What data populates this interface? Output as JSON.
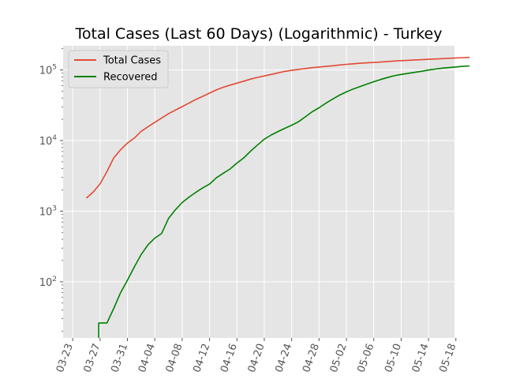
{
  "chart_data": {
    "type": "line",
    "title": "Total Cases (Last 60 Days) (Logarithmic) - Turkey",
    "xlabel": "",
    "ylabel": "",
    "yscale": "log",
    "grid": true,
    "legend_position": "top-left",
    "x_ticks": [
      "03-23",
      "03-27",
      "03-31",
      "04-04",
      "04-08",
      "04-12",
      "04-16",
      "04-20",
      "04-24",
      "04-28",
      "05-02",
      "05-06",
      "05-10",
      "05-14",
      "05-18"
    ],
    "y_ticks": [
      {
        "value": 100,
        "base": "10",
        "exp": "2"
      },
      {
        "value": 1000,
        "base": "10",
        "exp": "3"
      },
      {
        "value": 10000,
        "base": "10",
        "exp": "4"
      },
      {
        "value": 100000,
        "base": "10",
        "exp": "5"
      }
    ],
    "x_range_days": [
      -1.4,
      55.8
    ],
    "y_range": [
      16,
      220000
    ],
    "series": [
      {
        "name": "Total Cases",
        "color": "#E24A33",
        "points": [
          [
            2,
            1529
          ],
          [
            3,
            1872
          ],
          [
            4,
            2433
          ],
          [
            5,
            3629
          ],
          [
            6,
            5698
          ],
          [
            7,
            7402
          ],
          [
            8,
            9217
          ],
          [
            9,
            10827
          ],
          [
            10,
            13531
          ],
          [
            11,
            15679
          ],
          [
            12,
            18135
          ],
          [
            13,
            20921
          ],
          [
            14,
            23934
          ],
          [
            15,
            27069
          ],
          [
            16,
            30217
          ],
          [
            17,
            34109
          ],
          [
            18,
            38226
          ],
          [
            19,
            42282
          ],
          [
            20,
            47029
          ],
          [
            21,
            52167
          ],
          [
            22,
            56956
          ],
          [
            23,
            61049
          ],
          [
            24,
            65111
          ],
          [
            25,
            69392
          ],
          [
            26,
            74193
          ],
          [
            27,
            78546
          ],
          [
            28,
            82329
          ],
          [
            29,
            86306
          ],
          [
            30,
            90980
          ],
          [
            31,
            95591
          ],
          [
            32,
            98674
          ],
          [
            33,
            101790
          ],
          [
            34,
            104912
          ],
          [
            35,
            107773
          ],
          [
            36,
            110130
          ],
          [
            37,
            112261
          ],
          [
            38,
            114653
          ],
          [
            39,
            117589
          ],
          [
            40,
            120204
          ],
          [
            41,
            122392
          ],
          [
            42,
            124375
          ],
          [
            43,
            126045
          ],
          [
            44,
            127659
          ],
          [
            45,
            129491
          ],
          [
            46,
            131744
          ],
          [
            47,
            133721
          ],
          [
            48,
            135569
          ],
          [
            49,
            137115
          ],
          [
            50,
            138657
          ],
          [
            51,
            139771
          ],
          [
            52,
            141475
          ],
          [
            53,
            143114
          ],
          [
            54,
            144749
          ],
          [
            55,
            146457
          ],
          [
            56,
            148067
          ],
          [
            57,
            149435
          ],
          [
            58,
            150593
          ]
        ]
      },
      {
        "name": "Recovered",
        "color": "#008000",
        "points": [
          [
            3.8,
            16
          ],
          [
            3.8,
            26
          ],
          [
            4.8,
            26
          ],
          [
            5,
            26
          ],
          [
            6,
            42
          ],
          [
            7,
            70
          ],
          [
            8,
            105
          ],
          [
            9,
            162
          ],
          [
            10,
            243
          ],
          [
            11,
            333
          ],
          [
            12,
            415
          ],
          [
            13,
            484
          ],
          [
            14,
            786
          ],
          [
            15,
            1042
          ],
          [
            16,
            1326
          ],
          [
            17,
            1582
          ],
          [
            18,
            1846
          ],
          [
            19,
            2142
          ],
          [
            20,
            2423
          ],
          [
            21,
            2965
          ],
          [
            22,
            3446
          ],
          [
            23,
            3957
          ],
          [
            24,
            4799
          ],
          [
            25,
            5674
          ],
          [
            26,
            7089
          ],
          [
            27,
            8631
          ],
          [
            28,
            10453
          ],
          [
            29,
            11976
          ],
          [
            30,
            13430
          ],
          [
            31,
            14918
          ],
          [
            32,
            16477
          ],
          [
            33,
            18491
          ],
          [
            34,
            21737
          ],
          [
            35,
            25582
          ],
          [
            36,
            29140
          ],
          [
            37,
            33791
          ],
          [
            38,
            38809
          ],
          [
            39,
            44040
          ],
          [
            40,
            48886
          ],
          [
            41,
            53808
          ],
          [
            42,
            58259
          ],
          [
            43,
            63151
          ],
          [
            44,
            68166
          ],
          [
            45,
            73285
          ],
          [
            46,
            78202
          ],
          [
            47,
            82984
          ],
          [
            48,
            86396
          ],
          [
            49,
            89480
          ],
          [
            50,
            92691
          ],
          [
            51,
            95780
          ],
          [
            52,
            99795
          ],
          [
            53,
            102900
          ],
          [
            54,
            106133
          ],
          [
            55,
            108137
          ],
          [
            56,
            110340
          ],
          [
            57,
            112895
          ],
          [
            58,
            113987
          ]
        ]
      }
    ]
  }
}
